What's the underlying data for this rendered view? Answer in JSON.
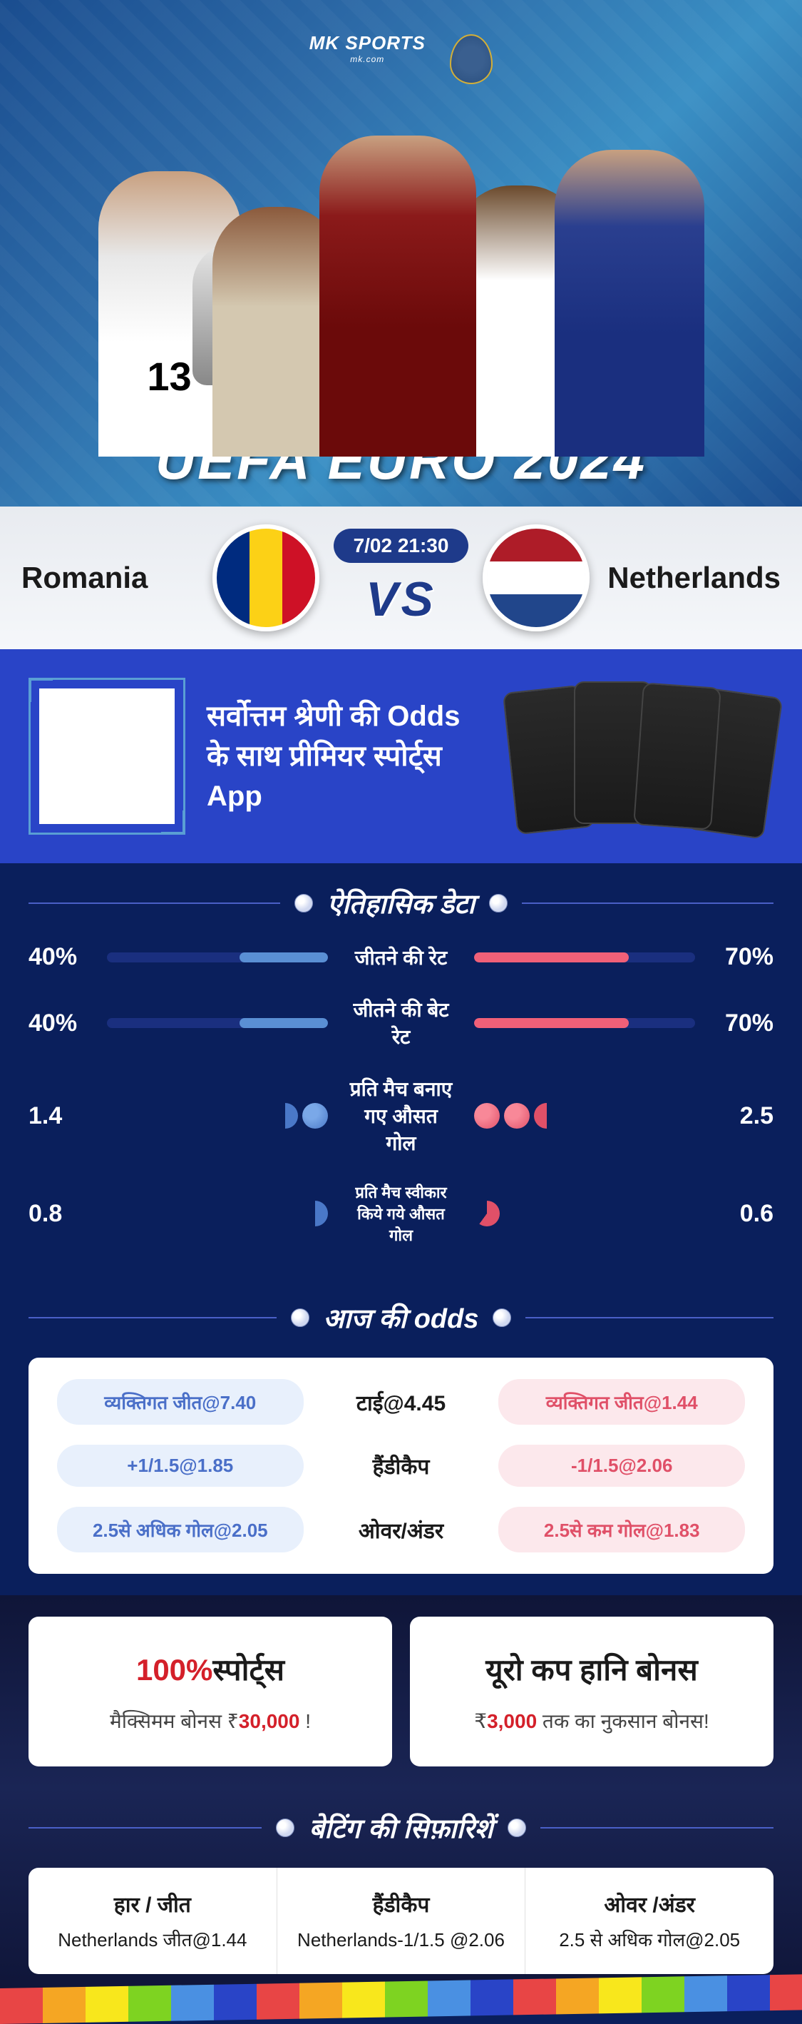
{
  "hero": {
    "title": "UEFA EURO 2024",
    "logo_main": "MK SPORTS",
    "logo_sub": "mk.com",
    "jersey_num": "13"
  },
  "matchup": {
    "team1": "Romania",
    "team2": "Netherlands",
    "datetime": "7/02 21:30",
    "vs": "VS",
    "flag1_colors": [
      "#002b7f",
      "#fcd116",
      "#ce1126"
    ],
    "flag2_colors": [
      "#ae1c28",
      "#ffffff",
      "#21468b"
    ]
  },
  "promo": {
    "text": "सर्वोत्तम श्रेणी की Odds के साथ प्रीमियर स्पोर्ट्स App"
  },
  "historical": {
    "header": "ऐतिहासिक डेटा",
    "rows": [
      {
        "left": "40%",
        "label": "जीतने की रेट",
        "right": "70%",
        "left_pct": 40,
        "right_pct": 70,
        "type": "bar"
      },
      {
        "left": "40%",
        "label": "जीतने की बेट रेट",
        "right": "70%",
        "left_pct": 40,
        "right_pct": 70,
        "type": "bar"
      },
      {
        "left": "1.4",
        "label": "प्रति मैच बनाए गए औसत गोल",
        "right": "2.5",
        "type": "goals",
        "l_full": 1,
        "l_half": 1,
        "r_full": 2,
        "r_half": 1
      },
      {
        "left": "0.8",
        "label": "प्रति मैच स्वीकार किये गये औसत गोल",
        "right": "0.6",
        "type": "goals_sm",
        "l_full": 0,
        "l_half": 1,
        "r_full": 0,
        "r_partial": 1
      }
    ]
  },
  "odds": {
    "header": "आज की odds",
    "rows": [
      {
        "left": "व्यक्तिगत जीत@7.40",
        "center": "टाई@4.45",
        "right": "व्यक्तिगत जीत@1.44"
      },
      {
        "left": "+1/1.5@1.85",
        "center": "हैंडीकैप",
        "right": "-1/1.5@2.06"
      },
      {
        "left": "2.5से अधिक गोल@2.05",
        "center": "ओवर/अंडर",
        "right": "2.5से कम गोल@1.83"
      }
    ]
  },
  "bonuses": [
    {
      "pct": "100%",
      "label": "स्पोर्ट्स",
      "sub_pre": "मैक्सिमम बोनस  ₹",
      "amount": "30,000",
      "sub_post": " !"
    },
    {
      "title": "यूरो कप हानि बोनस",
      "sub_pre": "₹",
      "amount": "3,000",
      "sub_post": " तक का नुकसान बोनस!"
    }
  ],
  "reco": {
    "header": "बेटिंग की सिफ़ारिशें",
    "cols": [
      {
        "label": "हार / जीत",
        "val": "Netherlands जीत@1.44"
      },
      {
        "label": "हैंडीकैप",
        "val": "Netherlands-1/1.5 @2.06"
      },
      {
        "label": "ओवर /अंडर",
        "val": "2.5 से अधिक गोल@2.05"
      }
    ]
  }
}
